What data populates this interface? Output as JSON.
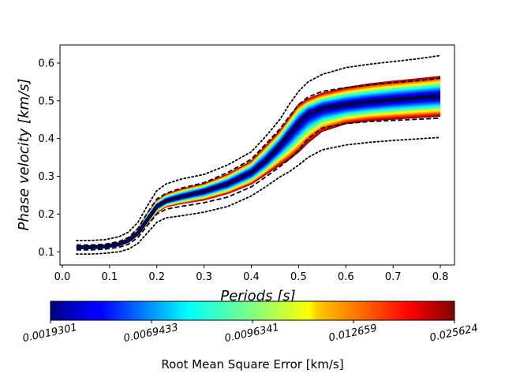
{
  "chart_data": {
    "type": "line",
    "xlabel": "Periods [s]",
    "ylabel": "Phase velocity [km/s]",
    "xlim": [
      -0.005,
      0.83
    ],
    "ylim": [
      0.065,
      0.648
    ],
    "xticks": [
      "0.0",
      "0.1",
      "0.2",
      "0.3",
      "0.4",
      "0.5",
      "0.6",
      "0.7",
      "0.8"
    ],
    "yticks": [
      "0.1",
      "0.2",
      "0.3",
      "0.4",
      "0.5",
      "0.6"
    ],
    "grid": false,
    "x": [
      0.03,
      0.06,
      0.09,
      0.12,
      0.14,
      0.16,
      0.18,
      0.2,
      0.22,
      0.25,
      0.3,
      0.35,
      0.4,
      0.43,
      0.46,
      0.48,
      0.5,
      0.52,
      0.55,
      0.6,
      0.65,
      0.7,
      0.75,
      0.8
    ],
    "ensemble": {
      "description": "Family of dispersion curves colored by RMS error",
      "median": [
        0.112,
        0.112,
        0.114,
        0.12,
        0.13,
        0.15,
        0.185,
        0.22,
        0.235,
        0.245,
        0.26,
        0.28,
        0.31,
        0.34,
        0.38,
        0.41,
        0.44,
        0.465,
        0.48,
        0.49,
        0.497,
        0.503,
        0.508,
        0.512
      ],
      "min": [
        0.11,
        0.11,
        0.112,
        0.117,
        0.126,
        0.145,
        0.175,
        0.205,
        0.22,
        0.228,
        0.238,
        0.255,
        0.28,
        0.305,
        0.33,
        0.345,
        0.365,
        0.39,
        0.42,
        0.44,
        0.448,
        0.452,
        0.456,
        0.46
      ],
      "max": [
        0.114,
        0.114,
        0.117,
        0.124,
        0.135,
        0.16,
        0.2,
        0.235,
        0.252,
        0.265,
        0.28,
        0.305,
        0.34,
        0.38,
        0.42,
        0.455,
        0.49,
        0.505,
        0.52,
        0.535,
        0.545,
        0.552,
        0.558,
        0.565
      ]
    },
    "series": [
      {
        "style": "dashed",
        "color": "#000000",
        "values": [
          0.118,
          0.118,
          0.12,
          0.127,
          0.138,
          0.162,
          0.203,
          0.24,
          0.255,
          0.268,
          0.283,
          0.31,
          0.345,
          0.385,
          0.425,
          0.458,
          0.49,
          0.51,
          0.525,
          0.535,
          0.542,
          0.548,
          0.553,
          0.56
        ]
      },
      {
        "style": "dashed",
        "color": "#000000",
        "values": [
          0.105,
          0.105,
          0.107,
          0.112,
          0.12,
          0.138,
          0.17,
          0.2,
          0.213,
          0.22,
          0.23,
          0.245,
          0.272,
          0.298,
          0.325,
          0.345,
          0.37,
          0.4,
          0.428,
          0.44,
          0.445,
          0.448,
          0.451,
          0.454
        ]
      },
      {
        "style": "dotted",
        "color": "#000000",
        "values": [
          0.13,
          0.13,
          0.132,
          0.14,
          0.152,
          0.178,
          0.222,
          0.262,
          0.28,
          0.292,
          0.305,
          0.33,
          0.365,
          0.405,
          0.45,
          0.49,
          0.525,
          0.55,
          0.57,
          0.588,
          0.597,
          0.604,
          0.611,
          0.62
        ]
      },
      {
        "style": "dotted",
        "color": "#000000",
        "values": [
          0.094,
          0.094,
          0.096,
          0.1,
          0.107,
          0.122,
          0.15,
          0.178,
          0.19,
          0.195,
          0.205,
          0.22,
          0.248,
          0.272,
          0.298,
          0.312,
          0.33,
          0.35,
          0.37,
          0.383,
          0.39,
          0.395,
          0.399,
          0.403
        ]
      }
    ],
    "colorbar": {
      "label": "Root Mean Square Error [km/s]",
      "colormap": "jet",
      "ticks": [
        "0.0019301",
        "0.0069433",
        "0.0096341",
        "0.012659",
        "0.025624"
      ]
    }
  }
}
